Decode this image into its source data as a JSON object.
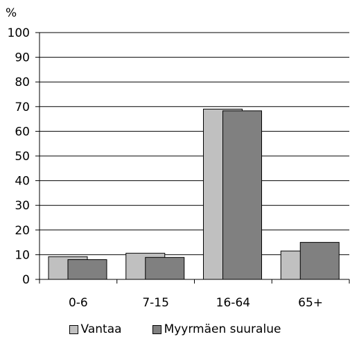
{
  "chart_data": {
    "type": "bar",
    "title": "",
    "xlabel": "",
    "ylabel": "%",
    "ylim": [
      0,
      100
    ],
    "yticks": [
      0,
      10,
      20,
      30,
      40,
      50,
      60,
      70,
      80,
      90,
      100
    ],
    "grid": true,
    "legend_position": "bottom",
    "categories": [
      "0-6",
      "7-15",
      "16-64",
      "65+"
    ],
    "series": [
      {
        "name": "Vantaa",
        "values": [
          9.2,
          10.6,
          69.0,
          11.5
        ],
        "color": "#c0c0c0"
      },
      {
        "name": "Myyrmäen suuralue",
        "values": [
          8.0,
          8.9,
          68.3,
          15.0
        ],
        "color": "#808080"
      }
    ]
  },
  "colors": {
    "axis": "#000000",
    "grid": "#000000",
    "background": "#ffffff"
  }
}
